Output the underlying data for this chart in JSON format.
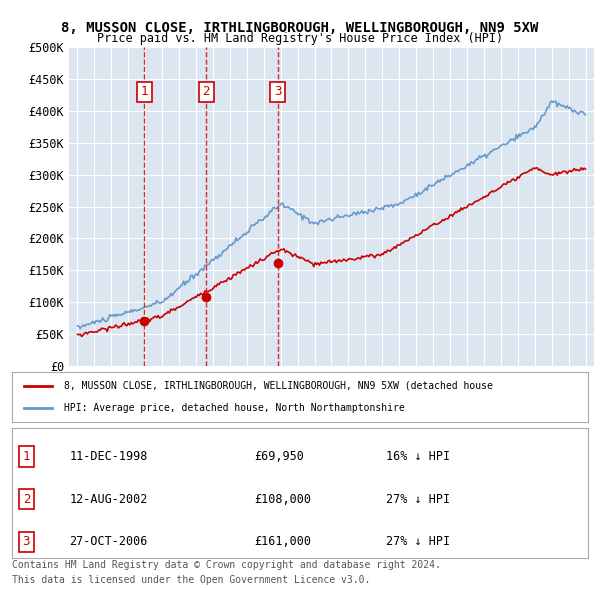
{
  "title": "8, MUSSON CLOSE, IRTHLINGBOROUGH, WELLINGBOROUGH, NN9 5XW",
  "subtitle": "Price paid vs. HM Land Registry's House Price Index (HPI)",
  "background_color": "#ffffff",
  "plot_bg_color": "#dce6f1",
  "grid_color": "#ffffff",
  "ylim": [
    0,
    500000
  ],
  "yticks": [
    0,
    50000,
    100000,
    150000,
    200000,
    250000,
    300000,
    350000,
    400000,
    450000,
    500000
  ],
  "ytick_labels": [
    "£0",
    "£50K",
    "£100K",
    "£150K",
    "£200K",
    "£250K",
    "£300K",
    "£350K",
    "£400K",
    "£450K",
    "£500K"
  ],
  "purchases": [
    {
      "label": "1",
      "date": "11-DEC-1998",
      "price": 69950,
      "x": 1998.94,
      "pct": "16%",
      "dir": "↓"
    },
    {
      "label": "2",
      "date": "12-AUG-2002",
      "price": 108000,
      "x": 2002.61,
      "pct": "27%",
      "dir": "↓"
    },
    {
      "label": "3",
      "date": "27-OCT-2006",
      "price": 161000,
      "x": 2006.82,
      "pct": "27%",
      "dir": "↓"
    }
  ],
  "legend_line1": "8, MUSSON CLOSE, IRTHLINGBOROUGH, WELLINGBOROUGH, NN9 5XW (detached house",
  "legend_line2": "HPI: Average price, detached house, North Northamptonshire",
  "footer1": "Contains HM Land Registry data © Crown copyright and database right 2024.",
  "footer2": "This data is licensed under the Open Government Licence v3.0.",
  "red_color": "#cc0000",
  "blue_color": "#6699cc",
  "purchase_marker_color": "#cc0000",
  "vline_color": "#cc0000",
  "box_color": "#cc0000"
}
